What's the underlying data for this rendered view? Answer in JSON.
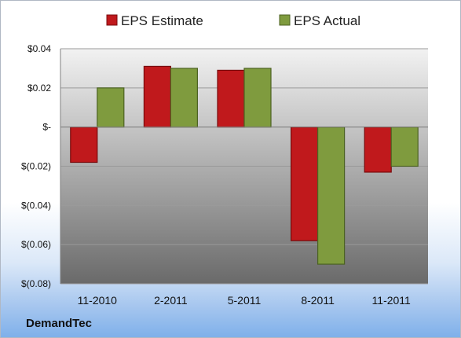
{
  "company": "DemandTec",
  "colors": {
    "estimate": "#c0191c",
    "estimate_dark": "#7a0a0c",
    "actual": "#7f9b3e",
    "actual_dark": "#4c6222",
    "plot_top": "#f2f2f2",
    "plot_bottom": "#6a6a6a"
  },
  "chart_data": {
    "type": "bar",
    "categories": [
      "11-2010",
      "2-2011",
      "5-2011",
      "8-2011",
      "11-2011"
    ],
    "series": [
      {
        "name": "EPS Estimate",
        "values": [
          -0.018,
          0.031,
          0.029,
          -0.058,
          -0.023
        ]
      },
      {
        "name": "EPS Actual",
        "values": [
          0.02,
          0.03,
          0.03,
          -0.07,
          -0.02
        ]
      }
    ],
    "ylim": [
      -0.08,
      0.04
    ],
    "yticks": [
      0.04,
      0.02,
      0,
      -0.02,
      -0.04,
      -0.06,
      -0.08
    ],
    "ytick_labels": [
      "$0.04",
      "$0.02",
      "$-",
      "$(0.02)",
      "$(0.04)",
      "$(0.06)",
      "$(0.08)"
    ],
    "legend_position": "top",
    "grid": true
  }
}
